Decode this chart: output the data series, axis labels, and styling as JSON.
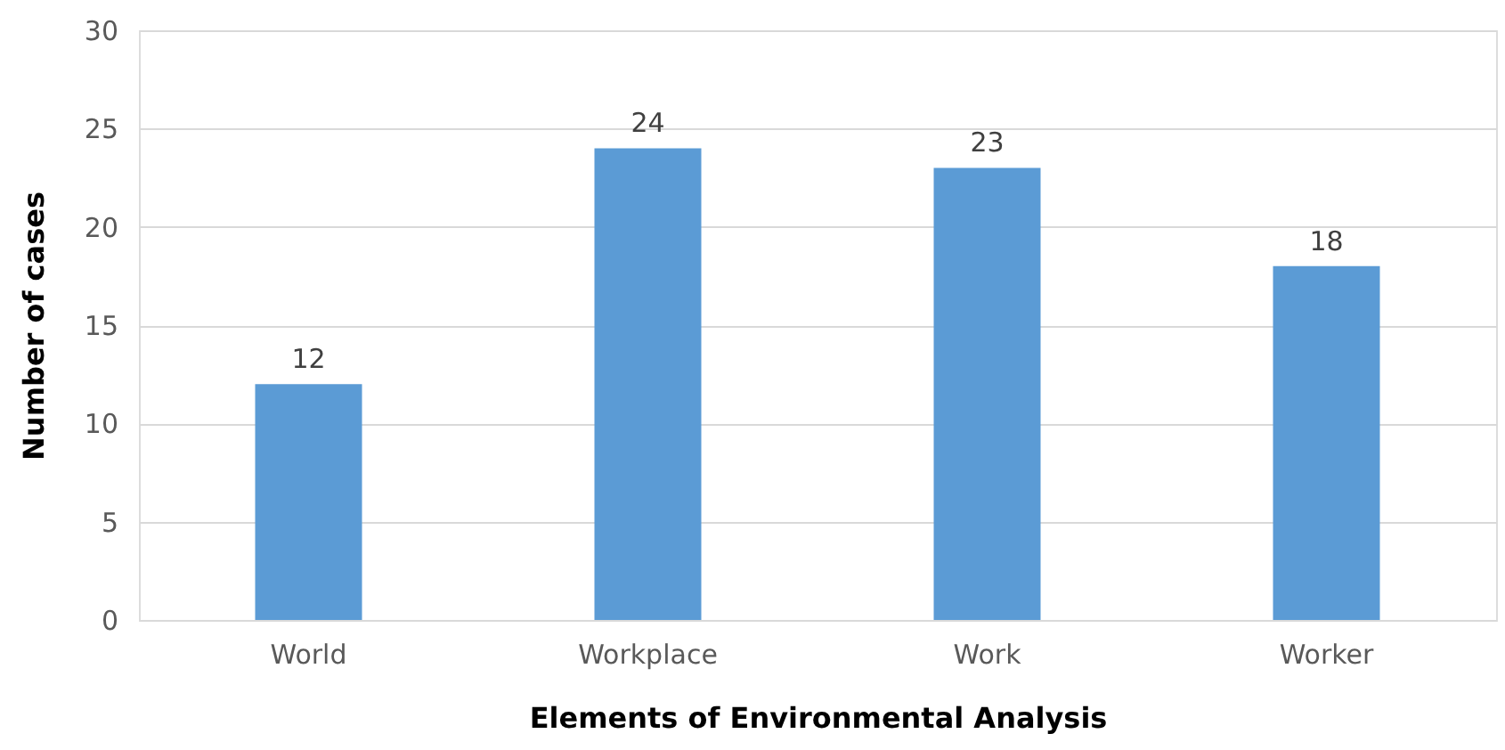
{
  "chart_data": {
    "type": "bar",
    "xlabel": "Elements of Environmental Analysis",
    "ylabel": "Number of cases",
    "categories": [
      "World",
      "Workplace",
      "Work",
      "Worker"
    ],
    "values": [
      12,
      24,
      23,
      18
    ],
    "color": "#5b9bd5",
    "ylim": [
      0,
      30
    ],
    "yticks": [
      0,
      5,
      10,
      15,
      20,
      25,
      30
    ],
    "grid": "y",
    "data_labels": true
  }
}
